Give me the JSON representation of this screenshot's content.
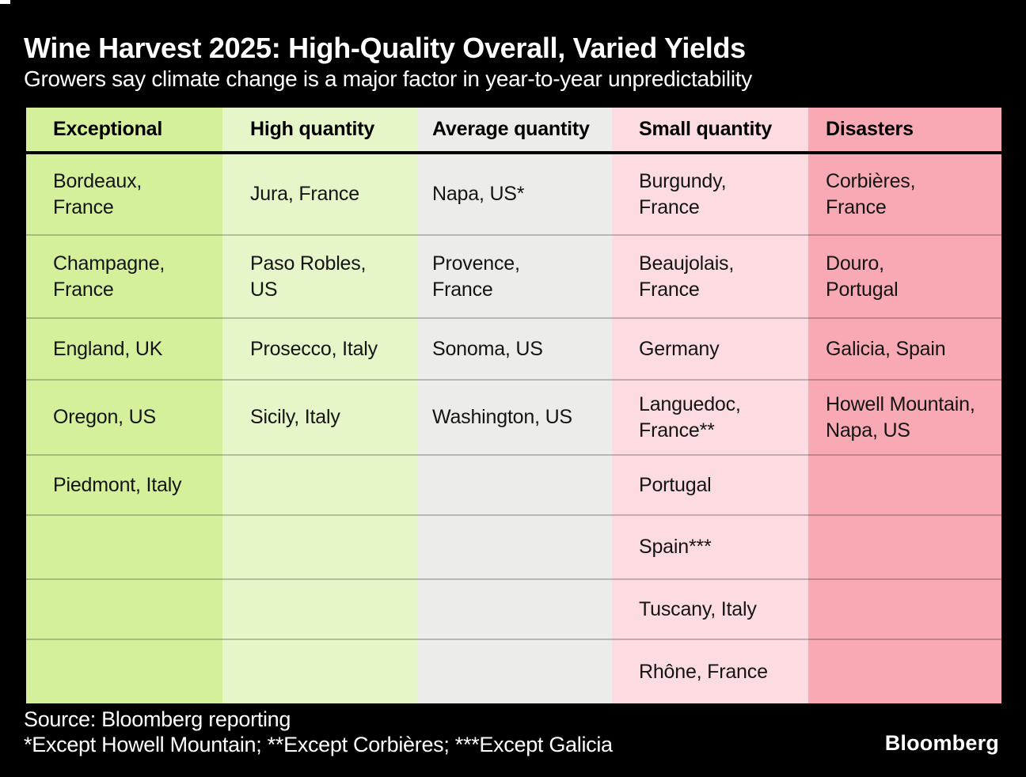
{
  "chart_data": {
    "type": "table",
    "title": "Wine Harvest 2025: High-Quality Overall, Varied Yields",
    "subtitle": "Growers say climate change is a major factor in year-to-year unpredictability",
    "columns": [
      {
        "label": "Exceptional",
        "color": "#d5f09b",
        "cells": [
          "Bordeaux,\nFrance",
          "Champagne,\nFrance",
          "England, UK",
          "Oregon, US",
          "Piedmont, Italy",
          "",
          "",
          ""
        ]
      },
      {
        "label": "High quantity",
        "color": "#e6f6c8",
        "cells": [
          "Jura, France",
          "Paso Robles,\nUS",
          "Prosecco, Italy",
          "Sicily, Italy",
          "",
          "",
          "",
          ""
        ]
      },
      {
        "label": "Average quantity",
        "color": "#ececea",
        "cells": [
          "Napa, US*",
          "Provence,\nFrance",
          "Sonoma, US",
          "Washington, US",
          "",
          "",
          "",
          ""
        ]
      },
      {
        "label": "Small quantity",
        "color": "#fcdce0",
        "cells": [
          "Burgundy,\nFrance",
          "Beaujolais,\nFrance",
          "Germany",
          "Languedoc,\nFrance**",
          "Portugal",
          "Spain***",
          "Tuscany, Italy",
          "Rhône, France"
        ]
      },
      {
        "label": "Disasters",
        "color": "#f9a9b4",
        "cells": [
          "Corbières,\nFrance",
          "Douro,\nPortugal",
          "Galicia, Spain",
          "Howell Mountain,\nNapa, US",
          "",
          "",
          "",
          ""
        ]
      }
    ],
    "source": "Source: Bloomberg reporting",
    "footnote": "*Except Howell Mountain; **Except Corbières; ***Except Galicia",
    "brand": "Bloomberg"
  }
}
